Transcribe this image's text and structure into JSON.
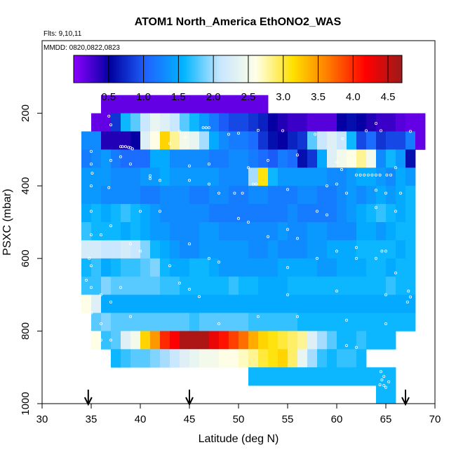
{
  "chart_data": {
    "type": "heatmap",
    "title": "ATOM1 North_America EthONO2_WAS",
    "annotations": [
      "Flts: 9,10,11",
      "MMDD: 0820,0822,0823"
    ],
    "xlabel": "Latitude (deg N)",
    "ylabel": "PSXC (mbar)",
    "xlim": [
      30,
      70
    ],
    "ylim": [
      1000,
      0
    ],
    "x_ticks": [
      "30",
      "35",
      "40",
      "45",
      "50",
      "55",
      "60",
      "65",
      "70"
    ],
    "y_ticks": [
      "200",
      "400",
      "600",
      "800",
      "1000"
    ],
    "colorbar": {
      "range": [
        0,
        4.7
      ],
      "ticks": [
        "0.5",
        "1.0",
        "1.5",
        "2.0",
        "2.5",
        "3.0",
        "3.5",
        "4.0",
        "4.5"
      ],
      "colors": [
        "#8B00FF",
        "#0000A0",
        "#1E64FF",
        "#00B4FF",
        "#C8E6FF",
        "#FFFFE6",
        "#FFE100",
        "#FF7800",
        "#FF0000",
        "#9B1B1B"
      ]
    },
    "flight_marker_latitudes": [
      34.7,
      45,
      67
    ],
    "rows": [
      {
        "p": 175,
        "lat0": 36,
        "lat1": 53,
        "vals": [
          0.15,
          0.15,
          0.15,
          0.15,
          0.15,
          0.15,
          0.15,
          0.15,
          0.15,
          0.15,
          0.15,
          0.15,
          0.15,
          0.15,
          0.15,
          0.15,
          0.15
        ]
      },
      {
        "p": 225,
        "lat0": 35,
        "lat1": 69,
        "vals": [
          0.15,
          0.15,
          0.8,
          1.6,
          1.8,
          2.1,
          2.4,
          2.3,
          2.1,
          1.8,
          1.6,
          1.4,
          1.2,
          1.0,
          0.9,
          0.9,
          0.8,
          0.7,
          0.5,
          0.4,
          0.3,
          0.3,
          0.2,
          0.2,
          0.2,
          0.5,
          0.6,
          0.5,
          0.4,
          0.3,
          0.3,
          0.2,
          0.15,
          0.15
        ]
      },
      {
        "p": 275,
        "lat0": 34,
        "lat1": 69,
        "vals": [
          1.3,
          1.3,
          0.4,
          0.4,
          0.4,
          0.5,
          2.3,
          2.6,
          3.2,
          2.8,
          2.5,
          2.4,
          2.0,
          1.5,
          1.3,
          1.2,
          1.2,
          1.1,
          0.8,
          0.6,
          0.5,
          0.7,
          0.8,
          1.8,
          2.1,
          2.3,
          2.1,
          1.6,
          0.9,
          1.1,
          0.8,
          0.9,
          0.9,
          1.2,
          0.15
        ]
      },
      {
        "p": 325,
        "lat0": 34,
        "lat1": 68,
        "vals": [
          1.2,
          1.3,
          1.4,
          1.2,
          1.1,
          1.1,
          1.1,
          1.5,
          1.5,
          1.3,
          1.3,
          1.3,
          1.3,
          1.2,
          1.2,
          1.3,
          1.3,
          1.2,
          1.1,
          1.0,
          1.2,
          1.1,
          0.6,
          0.8,
          1.5,
          2.3,
          2.5,
          2.6,
          2.8,
          2.5,
          1.3,
          1.6,
          1.4,
          0.6
        ]
      },
      {
        "p": 375,
        "lat0": 34,
        "lat1": 68,
        "vals": [
          1.4,
          1.4,
          1.4,
          1.3,
          1.3,
          1.3,
          1.4,
          1.4,
          1.5,
          1.4,
          1.4,
          1.4,
          1.4,
          1.4,
          1.3,
          1.3,
          1.3,
          2.0,
          3.1,
          1.6,
          1.4,
          1.4,
          1.4,
          1.4,
          1.4,
          1.3,
          1.3,
          1.4,
          1.5,
          1.5,
          1.4,
          1.3,
          1.5,
          1.4
        ]
      },
      {
        "p": 425,
        "lat0": 34,
        "lat1": 68,
        "vals": [
          1.4,
          1.4,
          1.3,
          1.3,
          1.3,
          1.3,
          1.2,
          1.2,
          1.3,
          1.3,
          1.3,
          1.2,
          1.2,
          1.3,
          1.3,
          1.2,
          1.2,
          1.3,
          1.3,
          1.2,
          1.2,
          1.2,
          1.3,
          1.3,
          1.2,
          1.2,
          1.3,
          1.4,
          1.3,
          1.4,
          1.5,
          1.4,
          1.5,
          1.6
        ]
      },
      {
        "p": 475,
        "lat0": 34,
        "lat1": 68,
        "vals": [
          1.5,
          1.6,
          1.5,
          1.6,
          1.7,
          1.6,
          1.5,
          1.4,
          1.3,
          1.3,
          1.3,
          1.3,
          1.3,
          1.2,
          1.2,
          1.2,
          1.2,
          1.2,
          1.2,
          1.2,
          1.2,
          1.3,
          1.2,
          1.2,
          1.2,
          1.2,
          1.3,
          1.4,
          1.5,
          1.6,
          1.7,
          1.6,
          1.5,
          1.6
        ]
      },
      {
        "p": 525,
        "lat0": 34,
        "lat1": 68,
        "vals": [
          1.7,
          1.6,
          1.6,
          1.6,
          1.5,
          1.6,
          1.5,
          1.4,
          1.4,
          1.3,
          1.3,
          1.3,
          1.4,
          1.4,
          1.3,
          1.3,
          1.3,
          1.3,
          1.3,
          1.3,
          1.4,
          1.3,
          1.3,
          1.4,
          1.4,
          1.3,
          1.3,
          1.3,
          1.5,
          1.5,
          1.4,
          1.5,
          1.6,
          1.6
        ]
      },
      {
        "p": 575,
        "lat0": 34,
        "lat1": 68,
        "vals": [
          2.2,
          2.2,
          2.1,
          2.1,
          2.2,
          2.1,
          1.9,
          1.6,
          1.5,
          1.4,
          1.3,
          1.3,
          1.4,
          1.4,
          1.4,
          1.4,
          1.4,
          1.3,
          1.3,
          1.4,
          1.3,
          1.3,
          1.3,
          1.4,
          1.4,
          1.5,
          1.5,
          1.5,
          1.6,
          1.6,
          1.6,
          1.6,
          1.5,
          1.6
        ]
      },
      {
        "p": 625,
        "lat0": 34,
        "lat1": 68,
        "vals": [
          1.6,
          1.7,
          1.5,
          1.6,
          1.7,
          1.7,
          1.8,
          1.9,
          1.6,
          1.5,
          1.5,
          1.6,
          1.6,
          1.5,
          1.4,
          1.4,
          1.4,
          1.4,
          1.4,
          1.4,
          1.5,
          1.5,
          1.5,
          1.5,
          1.4,
          1.4,
          1.5,
          1.5,
          1.5,
          1.6,
          1.6,
          1.5,
          1.6,
          1.6
        ]
      },
      {
        "p": 675,
        "lat0": 34,
        "lat1": 68,
        "vals": [
          1.7,
          1.7,
          1.9,
          1.8,
          1.8,
          1.8,
          1.8,
          1.8,
          1.7,
          1.7,
          1.6,
          1.6,
          1.6,
          1.6,
          1.6,
          1.7,
          1.6,
          1.6,
          1.5,
          1.5,
          1.5,
          1.6,
          1.6,
          1.6,
          1.6,
          1.6,
          1.6,
          1.6,
          1.6,
          1.6,
          1.6,
          1.7,
          1.6,
          1.6
        ]
      },
      {
        "p": 725,
        "lat0": 34,
        "lat1": 68,
        "vals": [
          2.6,
          2.3,
          1.5,
          1.5,
          1.5,
          1.5,
          1.5,
          1.5,
          1.5,
          1.5,
          1.5,
          1.5,
          1.5,
          1.5,
          1.5,
          1.5,
          1.5,
          1.5,
          1.5,
          1.5,
          1.5,
          1.5,
          1.5,
          1.5,
          1.5,
          1.5,
          1.5,
          1.5,
          1.5,
          1.5,
          1.5,
          1.5,
          1.5,
          1.5
        ]
      },
      {
        "p": 775,
        "lat0": 35,
        "lat1": 68,
        "vals": [
          1.8,
          1.9,
          1.8,
          1.8,
          1.8,
          1.8,
          1.8,
          1.8,
          1.8,
          1.8,
          1.7,
          1.8,
          1.8,
          1.8,
          1.8,
          1.8,
          1.7,
          1.7,
          1.7,
          1.7,
          1.7,
          1.6,
          1.6,
          1.6,
          1.6,
          1.6,
          1.6,
          1.6,
          1.6,
          1.6,
          1.6,
          1.6,
          1.6
        ]
      },
      {
        "p": 825,
        "lat0": 35,
        "lat1": 66,
        "vals": [
          2.6,
          1.7,
          1.8,
          2.3,
          2.5,
          3.2,
          3.5,
          4.0,
          4.2,
          4.6,
          4.6,
          4.6,
          4.3,
          4.1,
          3.9,
          3.7,
          3.4,
          3.2,
          3.1,
          3.0,
          2.9,
          2.8,
          2.3,
          2.0,
          1.8,
          1.6,
          1.6,
          1.7,
          1.6,
          1.6,
          1.6
        ]
      },
      {
        "p": 875,
        "lat0": 37,
        "lat1": 63,
        "vals": [
          1.6,
          1.7,
          1.8,
          1.8,
          1.9,
          2.0,
          2.1,
          2.3,
          2.4,
          2.5,
          2.5,
          2.6,
          2.6,
          2.7,
          2.8,
          3.0,
          3.1,
          3.2,
          2.9,
          2.4,
          2.0,
          1.7,
          1.6,
          1.7,
          1.7,
          1.6
        ]
      },
      {
        "p": 925,
        "lat0": 51,
        "lat1": 66,
        "vals": [
          1.6,
          1.6,
          1.6,
          1.6,
          1.6,
          1.6,
          1.6,
          1.6,
          1.6,
          1.6,
          1.6,
          1.6,
          1.6,
          1.6,
          1.6
        ]
      },
      {
        "p": 975,
        "lat0": 64,
        "lat1": 66,
        "vals": [
          1.6,
          1.6
        ]
      }
    ],
    "samples": [
      [
        36.8,
        208
      ],
      [
        37,
        232
      ],
      [
        38,
        292
      ],
      [
        38.2,
        292
      ],
      [
        38.5,
        292
      ],
      [
        38.8,
        294
      ],
      [
        39,
        295
      ],
      [
        39.2,
        298
      ],
      [
        43,
        283
      ],
      [
        44,
        250
      ],
      [
        44.6,
        265
      ],
      [
        46.4,
        240
      ],
      [
        46.7,
        240
      ],
      [
        47,
        240
      ],
      [
        49,
        258
      ],
      [
        50,
        255
      ],
      [
        52,
        247
      ],
      [
        54.5,
        248
      ],
      [
        57.8,
        258
      ],
      [
        60.6,
        270
      ],
      [
        63,
        248
      ],
      [
        64,
        228
      ],
      [
        64.5,
        248
      ],
      [
        67.5,
        250
      ],
      [
        35,
        305
      ],
      [
        35,
        340
      ],
      [
        35.1,
        365
      ],
      [
        37,
        330
      ],
      [
        38,
        320
      ],
      [
        39,
        340
      ],
      [
        41,
        380
      ],
      [
        45,
        345
      ],
      [
        47,
        340
      ],
      [
        51,
        350
      ],
      [
        51.5,
        395
      ],
      [
        51.8,
        395
      ],
      [
        53,
        330
      ],
      [
        56,
        315
      ],
      [
        60,
        335
      ],
      [
        60.5,
        355
      ],
      [
        62,
        370
      ],
      [
        62.4,
        370
      ],
      [
        62.8,
        370
      ],
      [
        63.2,
        370
      ],
      [
        63.6,
        370
      ],
      [
        64,
        370
      ],
      [
        64.4,
        370
      ],
      [
        65.1,
        370
      ],
      [
        65.5,
        370
      ],
      [
        66,
        350
      ],
      [
        35,
        400
      ],
      [
        36.8,
        405
      ],
      [
        41,
        372
      ],
      [
        42,
        385
      ],
      [
        45,
        385
      ],
      [
        47,
        395
      ],
      [
        48,
        420
      ],
      [
        49.6,
        420
      ],
      [
        50.4,
        420
      ],
      [
        55,
        410
      ],
      [
        59,
        400
      ],
      [
        60,
        395
      ],
      [
        61,
        420
      ],
      [
        64,
        412
      ],
      [
        65,
        420
      ],
      [
        66.5,
        420
      ],
      [
        35,
        470
      ],
      [
        40,
        470
      ],
      [
        42,
        470
      ],
      [
        50,
        490
      ],
      [
        51,
        500
      ],
      [
        58,
        470
      ],
      [
        59,
        480
      ],
      [
        64,
        460
      ],
      [
        66,
        470
      ],
      [
        35,
        535
      ],
      [
        36,
        535
      ],
      [
        37,
        510
      ],
      [
        39,
        560
      ],
      [
        40,
        580
      ],
      [
        45,
        560
      ],
      [
        53,
        540
      ],
      [
        55,
        520
      ],
      [
        56,
        545
      ],
      [
        60,
        580
      ],
      [
        62,
        570
      ],
      [
        34.8,
        600
      ],
      [
        35,
        620
      ],
      [
        43,
        620
      ],
      [
        47,
        600
      ],
      [
        48,
        610
      ],
      [
        55,
        625
      ],
      [
        58,
        600
      ],
      [
        62,
        600
      ],
      [
        64,
        600
      ],
      [
        64.6,
        580
      ],
      [
        65,
        580
      ],
      [
        66,
        640
      ],
      [
        34.5,
        660
      ],
      [
        35,
        680
      ],
      [
        36,
        700
      ],
      [
        37,
        720
      ],
      [
        38,
        680
      ],
      [
        44,
        668
      ],
      [
        45,
        685
      ],
      [
        46,
        705
      ],
      [
        55,
        700
      ],
      [
        60,
        690
      ],
      [
        65,
        700
      ],
      [
        67.3,
        690
      ],
      [
        67.5,
        706
      ],
      [
        67.2,
        720
      ],
      [
        35,
        750
      ],
      [
        36,
        780
      ],
      [
        39,
        760
      ],
      [
        48,
        780
      ],
      [
        52,
        760
      ],
      [
        56,
        760
      ],
      [
        61,
        770
      ],
      [
        65,
        780
      ],
      [
        35,
        810
      ],
      [
        36,
        825
      ],
      [
        37,
        825
      ],
      [
        61,
        840
      ],
      [
        62,
        845
      ],
      [
        64.5,
        912
      ],
      [
        64.8,
        925
      ],
      [
        64.6,
        935
      ],
      [
        65.3,
        940
      ],
      [
        64.4,
        948
      ],
      [
        64.8,
        950
      ],
      [
        65,
        955
      ]
    ]
  }
}
